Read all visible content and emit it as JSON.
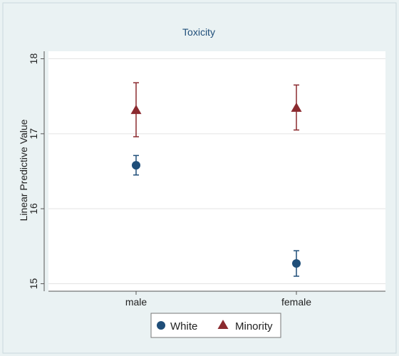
{
  "chart_data": {
    "type": "scatter",
    "title": "Toxicity",
    "xlabel": "",
    "ylabel": "Linear Predictive Value",
    "categories": [
      "male",
      "female"
    ],
    "ylim": [
      14.9,
      18.1
    ],
    "yticks": [
      15,
      16,
      17,
      18
    ],
    "grid": true,
    "legend_position": "bottom",
    "series": [
      {
        "name": "White",
        "marker": "circle",
        "color": "#1f4e79",
        "values": [
          16.58,
          15.27
        ],
        "ci_low": [
          16.45,
          15.1
        ],
        "ci_high": [
          16.71,
          15.44
        ]
      },
      {
        "name": "Minority",
        "marker": "triangle",
        "color": "#8b2a2f",
        "values": [
          17.32,
          17.35
        ],
        "ci_low": [
          16.96,
          17.05
        ],
        "ci_high": [
          17.68,
          17.65
        ]
      }
    ]
  }
}
